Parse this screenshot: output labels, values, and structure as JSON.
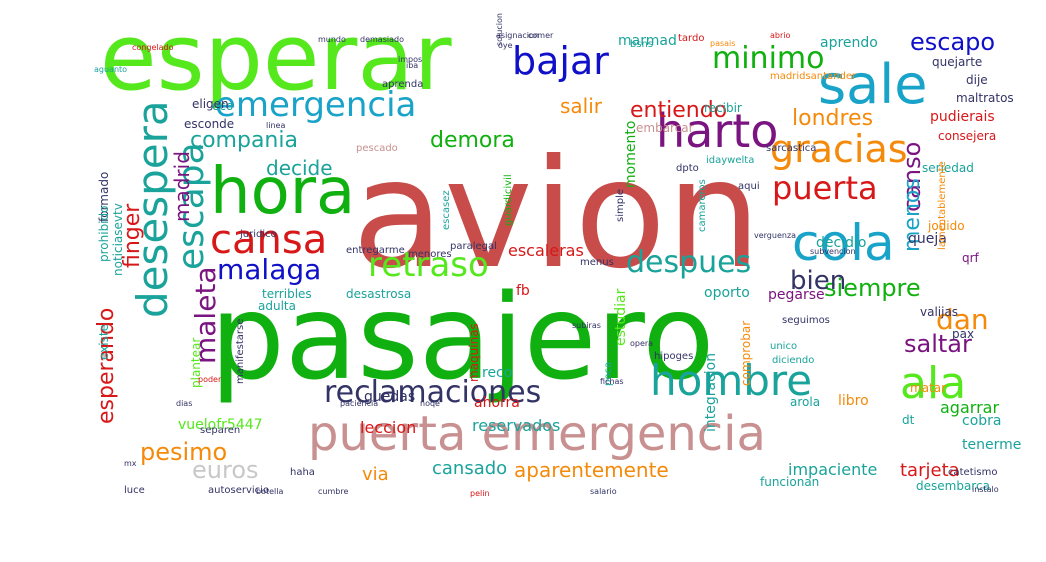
{
  "cloud": {
    "palette": {
      "red": "#c84d4a",
      "green": "#10b010",
      "lime": "#55e81c",
      "blue": "#1aa3c8",
      "navy": "#1010c8",
      "orange": "#f58a0a",
      "purple": "#7a1480",
      "teal": "#1aa39a",
      "pink": "#c89090",
      "grey": "#c8c8c8",
      "darkred": "#d81818",
      "dark": "#333366"
    },
    "words": [
      {
        "text": "avion",
        "color": "red"
      },
      {
        "text": "pasajero",
        "color": "green"
      },
      {
        "text": "esperar",
        "color": "lime"
      },
      {
        "text": "sale",
        "color": "blue"
      },
      {
        "text": "hora",
        "color": "green"
      },
      {
        "text": "puerta emergencia",
        "color": "pink"
      },
      {
        "text": "cola",
        "color": "blue"
      },
      {
        "text": "harto",
        "color": "purple"
      },
      {
        "text": "desespera",
        "color": "teal"
      },
      {
        "text": "escapa",
        "color": "teal"
      },
      {
        "text": "cansa",
        "color": "darkred"
      },
      {
        "text": "ala",
        "color": "lime"
      },
      {
        "text": "hombre",
        "color": "teal"
      },
      {
        "text": "retraso",
        "color": "lime"
      },
      {
        "text": "emergencia",
        "color": "blue"
      },
      {
        "text": "bajar",
        "color": "navy"
      },
      {
        "text": "gracias",
        "color": "orange"
      },
      {
        "text": "puerta",
        "color": "darkred"
      },
      {
        "text": "malaga",
        "color": "navy"
      },
      {
        "text": "maleta",
        "color": "purple"
      },
      {
        "text": "reclamaciones",
        "color": "dark"
      },
      {
        "text": "despues",
        "color": "teal"
      },
      {
        "text": "minimo",
        "color": "green"
      },
      {
        "text": "escapo",
        "color": "navy"
      },
      {
        "text": "canso",
        "color": "purple"
      },
      {
        "text": "menos",
        "color": "blue"
      },
      {
        "text": "siempre",
        "color": "green"
      },
      {
        "text": "saltar",
        "color": "purple"
      },
      {
        "text": "dan",
        "color": "orange"
      },
      {
        "text": "bien",
        "color": "dark"
      },
      {
        "text": "esperando",
        "color": "darkred"
      },
      {
        "text": "finger",
        "color": "darkred"
      },
      {
        "text": "pesimo",
        "color": "orange"
      },
      {
        "text": "euros",
        "color": "grey"
      },
      {
        "text": "compania",
        "color": "teal"
      },
      {
        "text": "demora",
        "color": "green"
      },
      {
        "text": "entiendo",
        "color": "darkred"
      },
      {
        "text": "londres",
        "color": "orange"
      },
      {
        "text": "salir",
        "color": "orange"
      },
      {
        "text": "decide",
        "color": "teal"
      },
      {
        "text": "madrid",
        "color": "purple"
      },
      {
        "text": "cansado",
        "color": "teal"
      },
      {
        "text": "aparentemente",
        "color": "orange"
      },
      {
        "text": "via",
        "color": "orange"
      },
      {
        "text": "tarjeta",
        "color": "darkred"
      },
      {
        "text": "impaciente",
        "color": "teal"
      },
      {
        "text": "leccion",
        "color": "darkred"
      },
      {
        "text": "reservados",
        "color": "teal"
      },
      {
        "text": "escaleras",
        "color": "darkred"
      },
      {
        "text": "integracion",
        "color": "teal"
      },
      {
        "text": "momento",
        "color": "green"
      },
      {
        "text": "estudiar",
        "color": "lime"
      },
      {
        "text": "agarrar",
        "color": "green"
      },
      {
        "text": "libro",
        "color": "orange"
      },
      {
        "text": "guedas",
        "color": "dark"
      },
      {
        "text": "vuelofr5447",
        "color": "lime"
      },
      {
        "text": "aprendo",
        "color": "teal"
      },
      {
        "text": "marmad",
        "color": "teal"
      },
      {
        "text": "pudierais",
        "color": "darkred"
      },
      {
        "text": "queja",
        "color": "dark"
      },
      {
        "text": "decidio",
        "color": "teal"
      },
      {
        "text": "seriedad",
        "color": "teal"
      },
      {
        "text": "oporto",
        "color": "teal"
      },
      {
        "text": "pegarse",
        "color": "purple"
      },
      {
        "text": "terribles",
        "color": "teal"
      },
      {
        "text": "desastrosa",
        "color": "teal"
      },
      {
        "text": "arola",
        "color": "teal"
      },
      {
        "text": "comprobar",
        "color": "orange"
      },
      {
        "text": "reco",
        "color": "teal"
      },
      {
        "text": "ahorra",
        "color": "darkred"
      },
      {
        "text": "cobra",
        "color": "teal"
      },
      {
        "text": "tenerme",
        "color": "teal"
      },
      {
        "text": "desembarca",
        "color": "teal"
      },
      {
        "text": "funcionan",
        "color": "teal"
      },
      {
        "text": "matar",
        "color": "orange"
      },
      {
        "text": "dt",
        "color": "teal"
      },
      {
        "text": "fb",
        "color": "darkred"
      },
      {
        "text": "pax",
        "color": "dark"
      },
      {
        "text": "valijas",
        "color": "dark"
      },
      {
        "text": "qrf",
        "color": "purple"
      },
      {
        "text": "jodido",
        "color": "orange"
      },
      {
        "text": "consejera",
        "color": "darkred"
      },
      {
        "text": "maltratos",
        "color": "dark"
      },
      {
        "text": "quejarte",
        "color": "dark"
      },
      {
        "text": "dije",
        "color": "dark"
      },
      {
        "text": "recibir",
        "color": "teal"
      },
      {
        "text": "embarcar",
        "color": "pink"
      },
      {
        "text": "eco",
        "color": "teal"
      },
      {
        "text": "esconde",
        "color": "dark"
      },
      {
        "text": "eligen",
        "color": "dark"
      },
      {
        "text": "formado",
        "color": "dark"
      },
      {
        "text": "noticiasevtv",
        "color": "teal"
      },
      {
        "text": "prohibido",
        "color": "teal"
      },
      {
        "text": "adulta",
        "color": "teal"
      },
      {
        "text": "plantear",
        "color": "lime"
      },
      {
        "text": "existe",
        "color": "teal"
      },
      {
        "text": "maquinas",
        "color": "darkred"
      },
      {
        "text": "manifestarse",
        "color": "dark"
      },
      {
        "text": "pescado",
        "color": "pink"
      },
      {
        "text": "escasez",
        "color": "teal"
      },
      {
        "text": "paralegal",
        "color": "dark"
      },
      {
        "text": "guardicivil",
        "color": "green"
      },
      {
        "text": "camareros",
        "color": "teal"
      },
      {
        "text": "menores",
        "color": "dark"
      },
      {
        "text": "entregarme",
        "color": "dark"
      },
      {
        "text": "menus",
        "color": "dark"
      },
      {
        "text": "hipoges",
        "color": "dark"
      },
      {
        "text": "unico",
        "color": "teal"
      },
      {
        "text": "diciendo",
        "color": "teal"
      },
      {
        "text": "poca",
        "color": "teal"
      },
      {
        "text": "bsns",
        "color": "teal"
      },
      {
        "text": "tardo",
        "color": "darkred"
      },
      {
        "text": "separen",
        "color": "dark"
      },
      {
        "text": "autoservicio",
        "color": "dark"
      },
      {
        "text": "luce",
        "color": "dark"
      },
      {
        "text": "dpto",
        "color": "dark"
      },
      {
        "text": "aqui",
        "color": "dark"
      },
      {
        "text": "catetismo",
        "color": "dark"
      },
      {
        "text": "haha",
        "color": "dark"
      },
      {
        "text": "seguimos",
        "color": "dark"
      },
      {
        "text": "juridico",
        "color": "dark"
      },
      {
        "text": "simple",
        "color": "dark"
      },
      {
        "text": "subvencion",
        "color": "dark"
      },
      {
        "text": "lamentablemente",
        "color": "orange"
      },
      {
        "text": "idaywelta",
        "color": "teal"
      },
      {
        "text": "sarcastica",
        "color": "dark"
      },
      {
        "text": "verguenza",
        "color": "dark"
      },
      {
        "text": "cumbre",
        "color": "dark"
      },
      {
        "text": "botella",
        "color": "dark"
      },
      {
        "text": "salario",
        "color": "dark"
      },
      {
        "text": "instalo",
        "color": "dark"
      },
      {
        "text": "congelado",
        "color": "darkred"
      },
      {
        "text": "mundo",
        "color": "dark"
      },
      {
        "text": "demasiado",
        "color": "dark"
      },
      {
        "text": "iba",
        "color": "dark"
      },
      {
        "text": "impos",
        "color": "dark"
      },
      {
        "text": "pelin",
        "color": "darkred"
      },
      {
        "text": "subiras",
        "color": "dark"
      },
      {
        "text": "poder",
        "color": "darkred"
      },
      {
        "text": "dias",
        "color": "dark"
      },
      {
        "text": "oye",
        "color": "dark"
      },
      {
        "text": "linea",
        "color": "dark"
      },
      {
        "text": "aguanto",
        "color": "teal"
      },
      {
        "text": "opera",
        "color": "dark"
      },
      {
        "text": "aprenda",
        "color": "dark"
      },
      {
        "text": "madridsantander",
        "color": "orange"
      },
      {
        "text": "pasais",
        "color": "orange"
      },
      {
        "text": "abrio",
        "color": "darkred"
      },
      {
        "text": "comer",
        "color": "dark"
      },
      {
        "text": "solucion",
        "color": "dark"
      },
      {
        "text": "asignacion",
        "color": "dark"
      },
      {
        "text": "fichas",
        "color": "dark"
      },
      {
        "text": "mx",
        "color": "dark"
      },
      {
        "text": "paciencia",
        "color": "dark"
      },
      {
        "text": "noqe",
        "color": "dark"
      }
    ]
  }
}
